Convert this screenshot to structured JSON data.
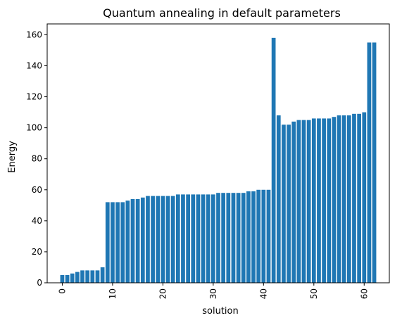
{
  "chart_data": {
    "type": "bar",
    "title": "Quantum annealing in default parameters",
    "xlabel": "solution",
    "ylabel": "Energy",
    "x": [
      0,
      1,
      2,
      3,
      4,
      5,
      6,
      7,
      8,
      9,
      10,
      11,
      12,
      13,
      14,
      15,
      16,
      17,
      18,
      19,
      20,
      21,
      22,
      23,
      24,
      25,
      26,
      27,
      28,
      29,
      30,
      31,
      32,
      33,
      34,
      35,
      36,
      37,
      38,
      39,
      40,
      41,
      42,
      43,
      44,
      45,
      46,
      47,
      48,
      49,
      50,
      51,
      52,
      53,
      54,
      55,
      56,
      57,
      58,
      59,
      60,
      61,
      62
    ],
    "values": [
      5,
      5,
      6,
      7,
      8,
      8,
      8,
      8,
      10,
      52,
      52,
      52,
      52,
      53,
      54,
      54,
      55,
      56,
      56,
      56,
      56,
      56,
      56,
      57,
      57,
      57,
      57,
      57,
      57,
      57,
      57,
      58,
      58,
      58,
      58,
      58,
      58,
      59,
      59,
      60,
      60,
      60,
      158,
      108,
      102,
      102,
      104,
      105,
      105,
      105,
      106,
      106,
      106,
      106,
      107,
      108,
      108,
      108,
      109,
      109,
      110,
      155,
      155
    ],
    "xlim": [
      -3,
      65
    ],
    "ylim": [
      0,
      167
    ],
    "xticks": [
      "0",
      "10",
      "20",
      "30",
      "40",
      "50",
      "60"
    ],
    "yticks": [
      "0",
      "20",
      "40",
      "60",
      "80",
      "100",
      "120",
      "140",
      "160"
    ],
    "bar_color": "#1f77b4",
    "grid": false,
    "legend": "none"
  }
}
